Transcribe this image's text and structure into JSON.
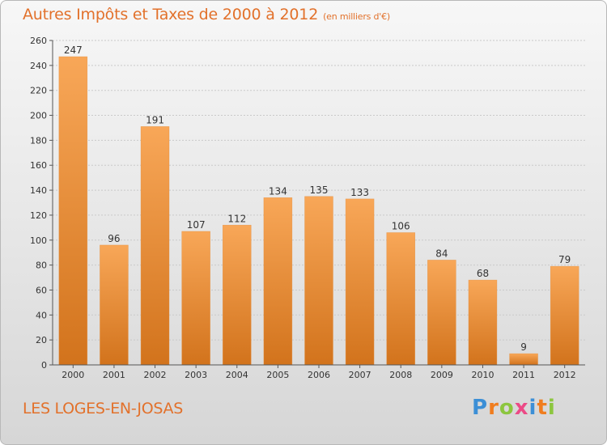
{
  "title": {
    "main": "Autres Impôts et Taxes de 2000 à 2012",
    "unit": "(en milliers d'€)"
  },
  "location": "LES LOGES-EN-JOSAS",
  "logo": {
    "text": "Proxiti"
  },
  "colors": {
    "accent": "#e2712b",
    "bar_top": "#f8a758",
    "bar_bottom": "#d2731c"
  },
  "chart_data": {
    "type": "bar",
    "categories": [
      "2000",
      "2001",
      "2002",
      "2003",
      "2004",
      "2005",
      "2006",
      "2007",
      "2008",
      "2009",
      "2010",
      "2011",
      "2012"
    ],
    "values": [
      247,
      96,
      191,
      107,
      112,
      134,
      135,
      133,
      106,
      84,
      68,
      9,
      79
    ],
    "ylim": [
      0,
      260
    ],
    "yticks": [
      0,
      20,
      40,
      60,
      80,
      100,
      120,
      140,
      160,
      180,
      200,
      220,
      240,
      260
    ],
    "grid": true
  }
}
